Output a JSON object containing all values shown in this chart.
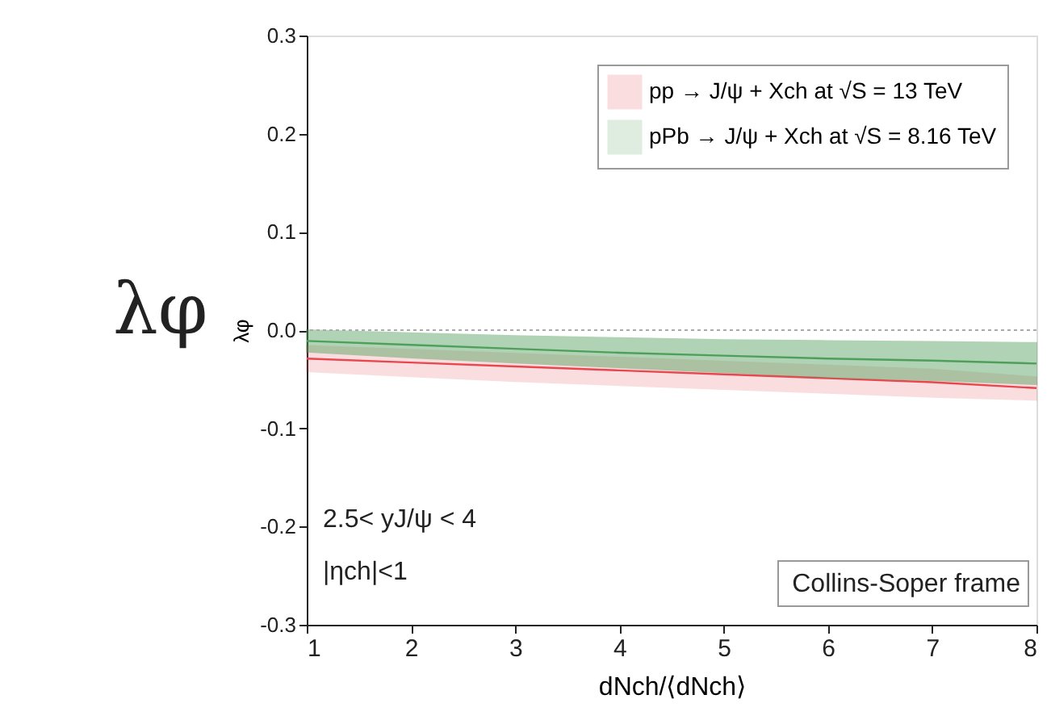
{
  "chart_data": {
    "type": "line",
    "xlabel": "dNch/⟨dNch⟩",
    "ylabel": "λφ",
    "x": [
      1,
      2,
      3,
      4,
      5,
      6,
      7,
      8
    ],
    "series": [
      {
        "name": "pp → J/ψ + Xch at √S = 13 TeV",
        "color": "#e8474f",
        "values": [
          -0.029,
          -0.033,
          -0.037,
          -0.041,
          -0.045,
          -0.049,
          -0.053,
          -0.059
        ],
        "lower": [
          -0.042,
          -0.047,
          -0.052,
          -0.056,
          -0.06,
          -0.064,
          -0.068,
          -0.071
        ],
        "upper": [
          -0.016,
          -0.02,
          -0.024,
          -0.028,
          -0.032,
          -0.036,
          -0.04,
          -0.048
        ]
      },
      {
        "name": "pPb → J/ψ + Xch at √S = 8.16 TeV",
        "color": "#4f9f5a",
        "values": [
          -0.011,
          -0.015,
          -0.019,
          -0.023,
          -0.026,
          -0.029,
          -0.031,
          -0.034
        ],
        "lower": [
          -0.022,
          -0.028,
          -0.033,
          -0.038,
          -0.043,
          -0.048,
          -0.051,
          -0.055
        ],
        "upper": [
          0.0,
          -0.003,
          -0.006,
          -0.008,
          -0.01,
          -0.011,
          -0.012,
          -0.013
        ]
      }
    ],
    "xlim": [
      1,
      8
    ],
    "xticks": [
      1,
      2,
      3,
      4,
      5,
      6,
      7,
      8
    ],
    "ylim": [
      -0.3,
      0.3
    ],
    "yticks": [
      {
        "value": -0.3,
        "label": "-0.3"
      },
      {
        "value": -0.2,
        "label": "-0.2"
      },
      {
        "value": -0.1,
        "label": "-0.1"
      },
      {
        "value": 0,
        "label": "0.0"
      },
      {
        "value": 0.1,
        "label": "0.1"
      },
      {
        "value": 0.2,
        "label": "0.2"
      },
      {
        "value": 0.3,
        "label": "0.3"
      }
    ],
    "ref_lines": [
      {
        "axis": "y",
        "value": 0,
        "color": "#aaaaaa",
        "line_style": "dotted"
      }
    ],
    "annotations": [
      "λφ",
      "2.5< yJ/ψ < 4",
      "|ηch|<1",
      "Collins-Soper frame"
    ],
    "legend": "top right",
    "grid": false
  }
}
